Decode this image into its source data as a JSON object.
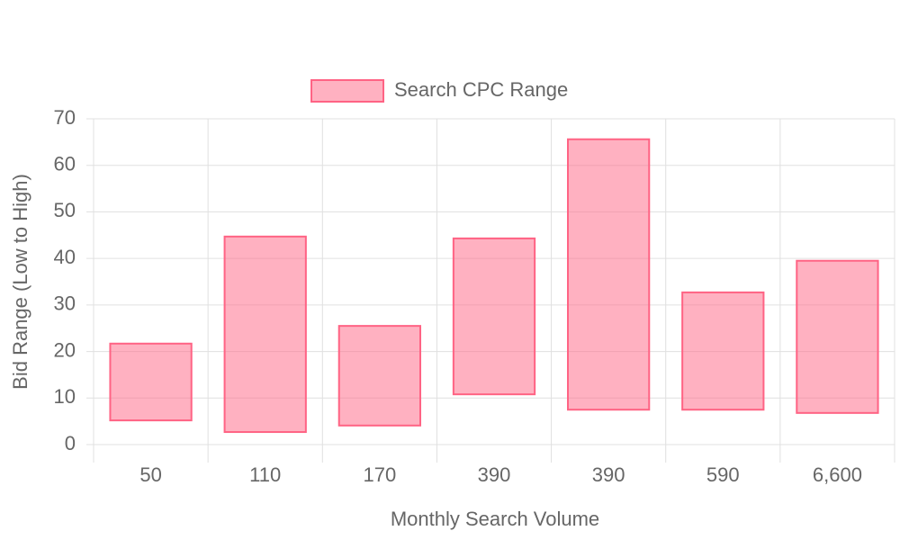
{
  "chart_data": {
    "type": "floating-bar",
    "legend": "top",
    "x_label": "Monthly Search Volume",
    "y_label": "Bid Range (Low to High)",
    "categories": [
      "50",
      "110",
      "170",
      "390",
      "390",
      "590",
      "6,600"
    ],
    "series": [
      {
        "name": "Search CPC Range",
        "color": "#ff6384",
        "low": [
          5.2,
          2.7,
          4.1,
          10.8,
          7.5,
          7.5,
          6.8
        ],
        "high": [
          21.7,
          44.7,
          25.5,
          44.3,
          65.6,
          32.7,
          39.5
        ]
      }
    ],
    "ylim": [
      0,
      70
    ],
    "yticks": [
      0,
      10,
      20,
      30,
      40,
      50,
      60,
      70
    ],
    "grid": true
  }
}
